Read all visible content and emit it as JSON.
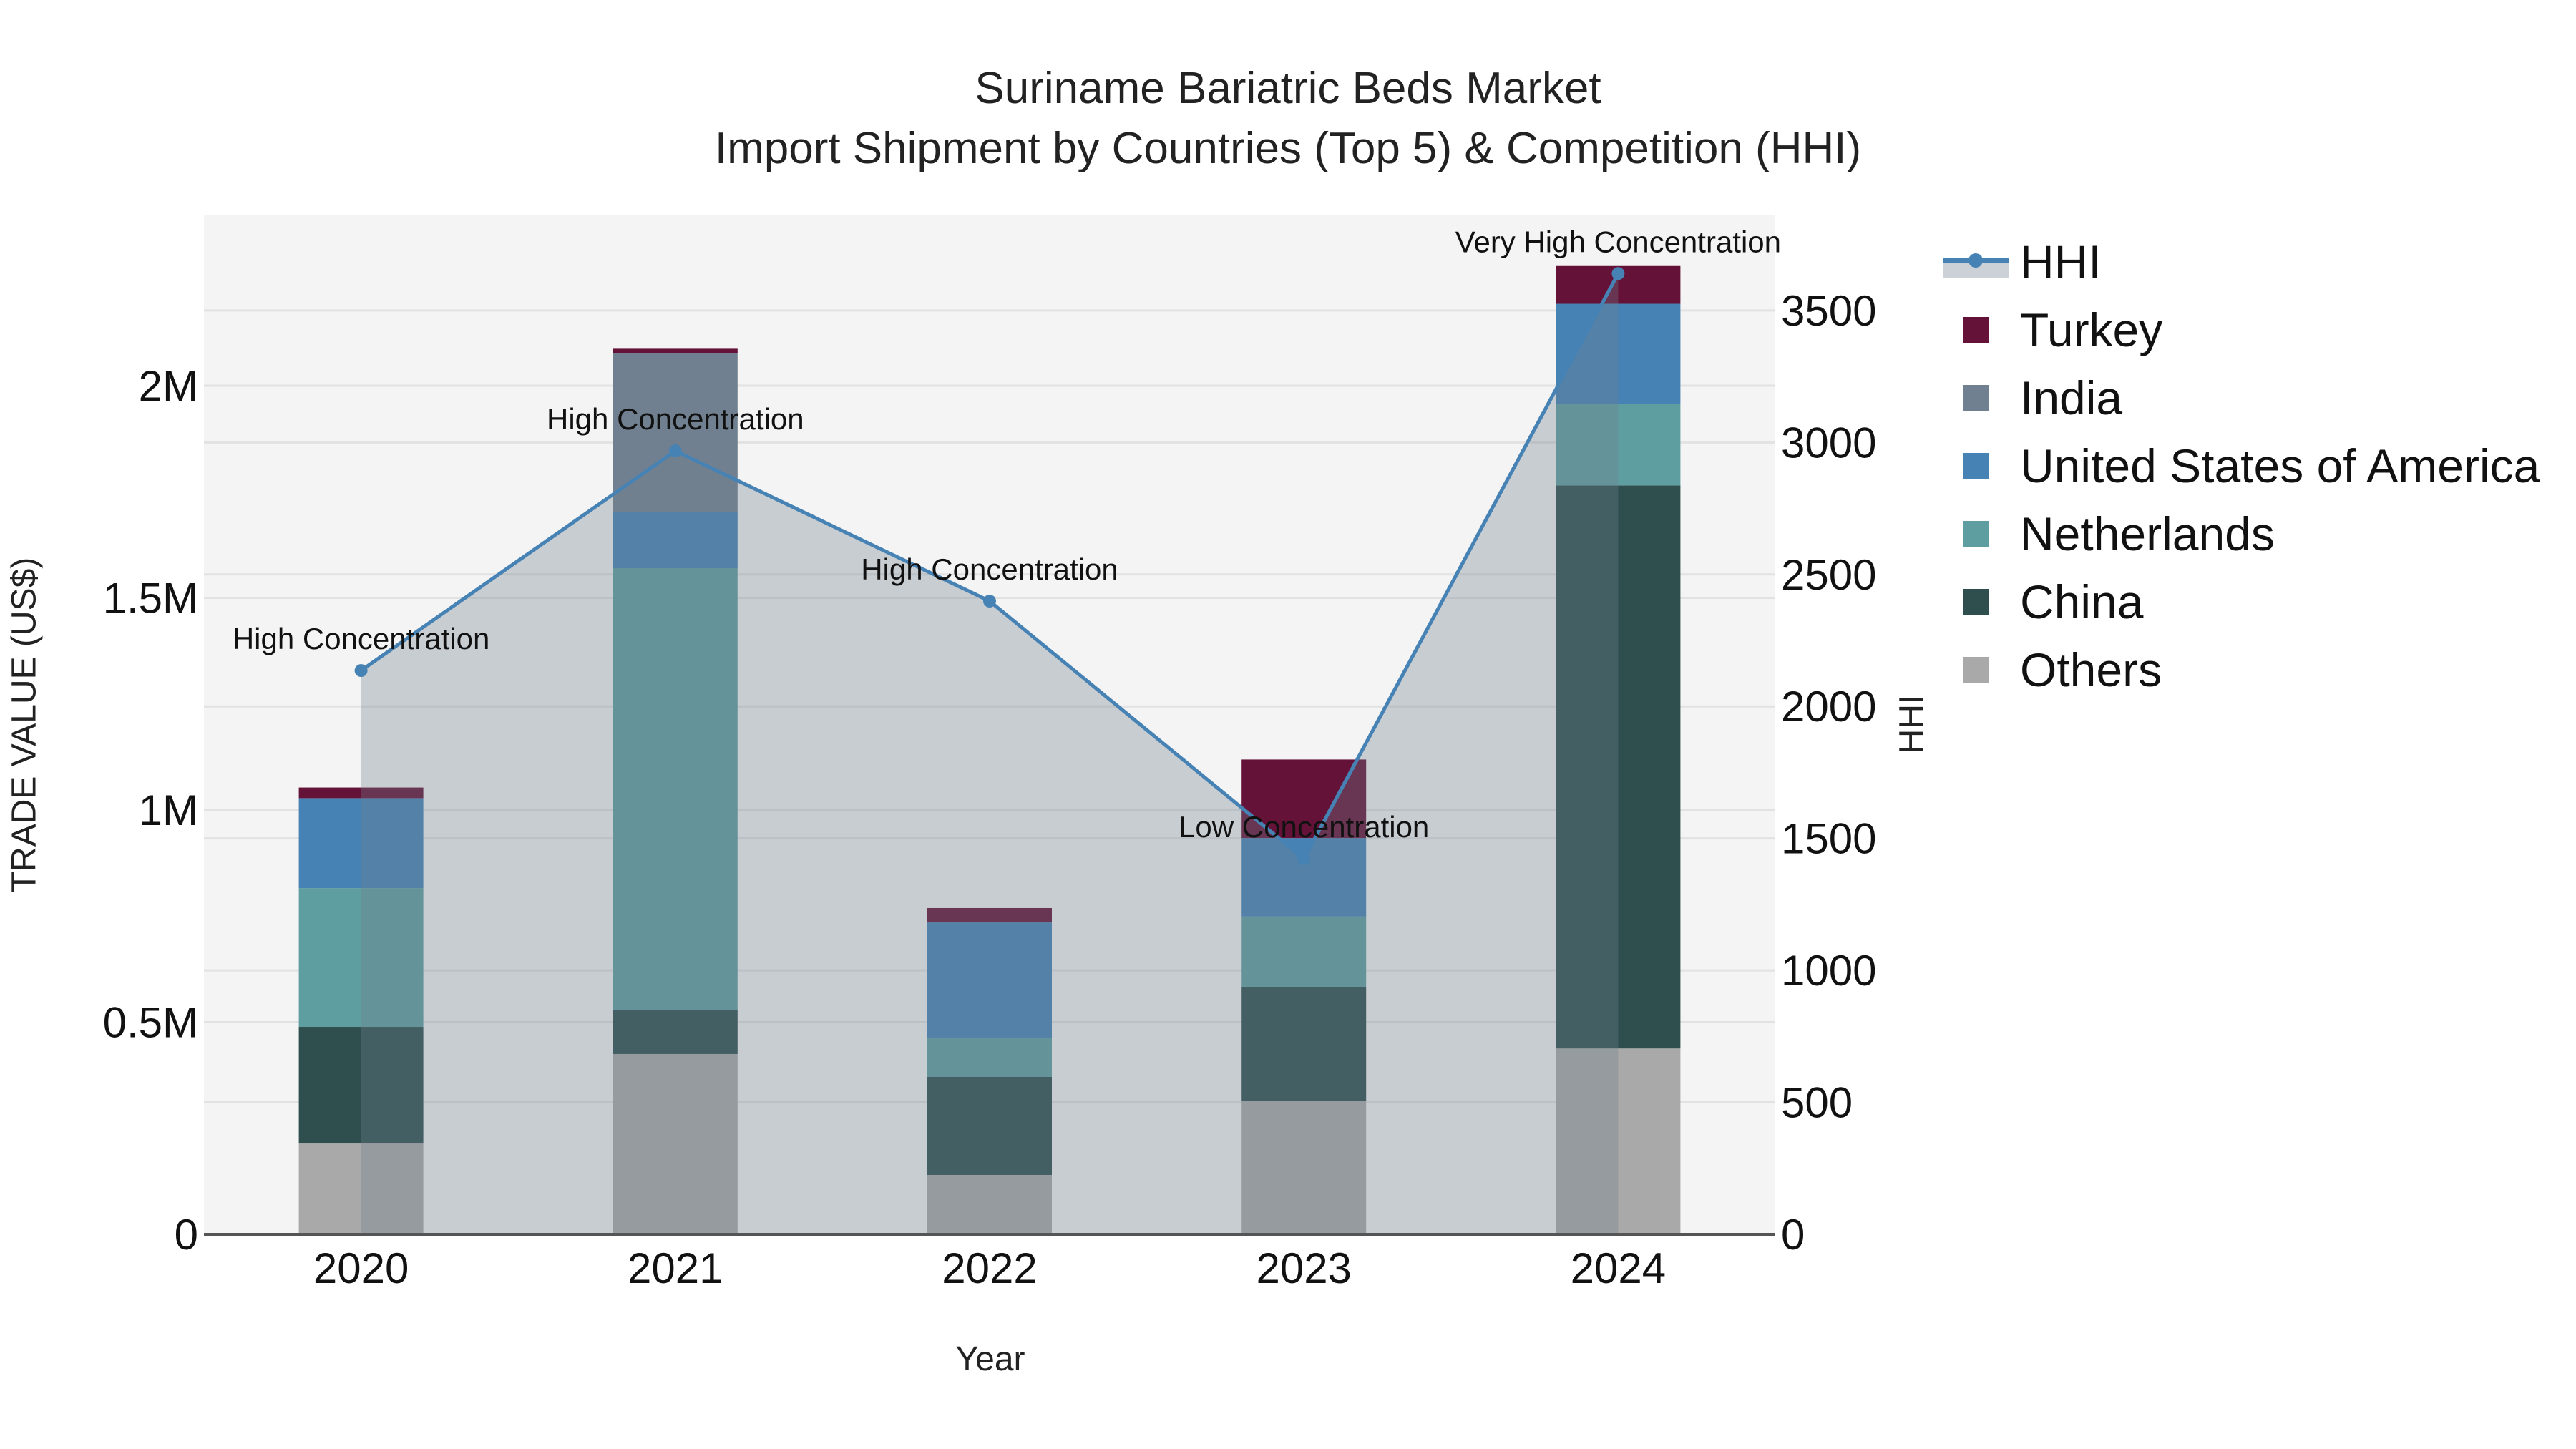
{
  "title": {
    "line1": "Suriname Bariatric Beds Market",
    "line2": "Import Shipment by Countries (Top 5) & Competition (HHI)"
  },
  "axes": {
    "x_title": "Year",
    "y_left_title": "TRADE VALUE (US$)",
    "y_right_title": "HHI",
    "y_left_ticks": [
      "0",
      "0.5M",
      "1M",
      "1.5M",
      "2M"
    ],
    "y_right_ticks": [
      "0",
      "500",
      "1000",
      "1500",
      "2000",
      "2500",
      "3000",
      "3500"
    ]
  },
  "legend": {
    "items": [
      {
        "label": "HHI",
        "type": "line",
        "color": "#4682b4"
      },
      {
        "label": "Turkey",
        "type": "bar",
        "color": "#641237"
      },
      {
        "label": "India",
        "type": "bar",
        "color": "#708090"
      },
      {
        "label": "United States of America",
        "type": "bar",
        "color": "#4682b4"
      },
      {
        "label": "Netherlands",
        "type": "bar",
        "color": "#5f9ea0"
      },
      {
        "label": "China",
        "type": "bar",
        "color": "#2f4f4f"
      },
      {
        "label": "Others",
        "type": "bar",
        "color": "#a9a9a9"
      }
    ]
  },
  "colors": {
    "plot_bg": "#f4f4f4",
    "grid": "#e2e2e2",
    "axis_line": "#555555",
    "hhi_line": "#4682b4",
    "hhi_fill": "rgba(112,128,144,0.33)"
  },
  "chart_data": {
    "type": "bar",
    "stacked": true,
    "title": "Suriname Bariatric Beds Market — Import Shipment by Countries (Top 5) & Competition (HHI)",
    "xlabel": "Year",
    "ylabel": "TRADE VALUE (US$)",
    "y2label": "HHI",
    "categories": [
      "2020",
      "2021",
      "2022",
      "2023",
      "2024"
    ],
    "ylim": [
      0,
      2403000
    ],
    "y2lim": [
      0,
      3863
    ],
    "grid": true,
    "legend_position": "right",
    "series": [
      {
        "name": "Others",
        "color": "#a9a9a9",
        "values": [
          214000,
          425000,
          140000,
          314000,
          438000
        ]
      },
      {
        "name": "China",
        "color": "#2f4f4f",
        "values": [
          275000,
          103000,
          231000,
          268000,
          1327000
        ]
      },
      {
        "name": "Netherlands",
        "color": "#5f9ea0",
        "values": [
          327000,
          1042000,
          91000,
          167000,
          192000
        ]
      },
      {
        "name": "United States of America",
        "color": "#4682b4",
        "values": [
          212000,
          133000,
          273000,
          185000,
          236000
        ]
      },
      {
        "name": "India",
        "color": "#708090",
        "values": [
          0,
          374000,
          0,
          0,
          0
        ]
      },
      {
        "name": "Turkey",
        "color": "#641237",
        "values": [
          25000,
          10000,
          34000,
          185000,
          89000
        ]
      }
    ],
    "line_series": {
      "name": "HHI",
      "axis": "right",
      "color": "#4682b4",
      "fill": "tozeroy",
      "values": [
        2136,
        2968,
        2399,
        1423,
        3640
      ],
      "annotations": [
        "High Concentration",
        "High Concentration",
        "High Concentration",
        "Low Concentration",
        "Very High Concentration"
      ]
    }
  }
}
